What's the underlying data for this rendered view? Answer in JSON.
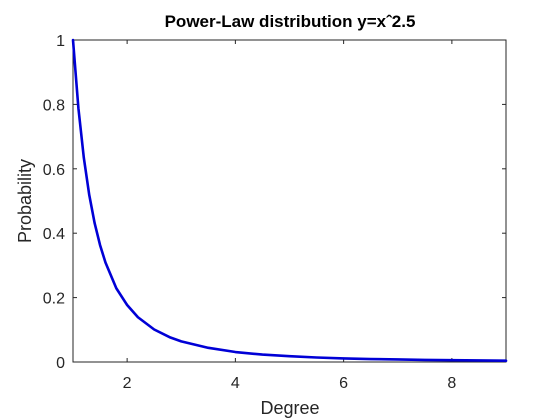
{
  "chart_data": {
    "type": "line",
    "title": "Power-Law distribution y=xˆ2.5",
    "xlabel": "Degree",
    "ylabel": "Probability",
    "xlim": [
      1,
      9
    ],
    "ylim": [
      0,
      1
    ],
    "x_ticks": [
      "2",
      "4",
      "6",
      "8"
    ],
    "y_ticks": [
      "0",
      "0.2",
      "0.4",
      "0.6",
      "0.8",
      "1"
    ],
    "x_tick_values": [
      2,
      4,
      6,
      8
    ],
    "y_tick_values": [
      0,
      0.2,
      0.4,
      0.6,
      0.8,
      1
    ],
    "grid": false,
    "series": [
      {
        "color": "#0000d6",
        "x": [
          1,
          1.1,
          1.2,
          1.3,
          1.4,
          1.5,
          1.6,
          1.8,
          2,
          2.2,
          2.5,
          2.8,
          3,
          3.5,
          4,
          4.5,
          5,
          5.5,
          6,
          6.5,
          7,
          7.5,
          8,
          8.5,
          9
        ],
        "y": [
          1,
          0.788,
          0.634,
          0.519,
          0.431,
          0.363,
          0.309,
          0.229,
          0.177,
          0.139,
          0.101,
          0.076,
          0.064,
          0.044,
          0.031,
          0.023,
          0.018,
          0.014,
          0.011,
          0.009,
          0.008,
          0.0065,
          0.0055,
          0.0048,
          0.0041
        ]
      }
    ]
  }
}
